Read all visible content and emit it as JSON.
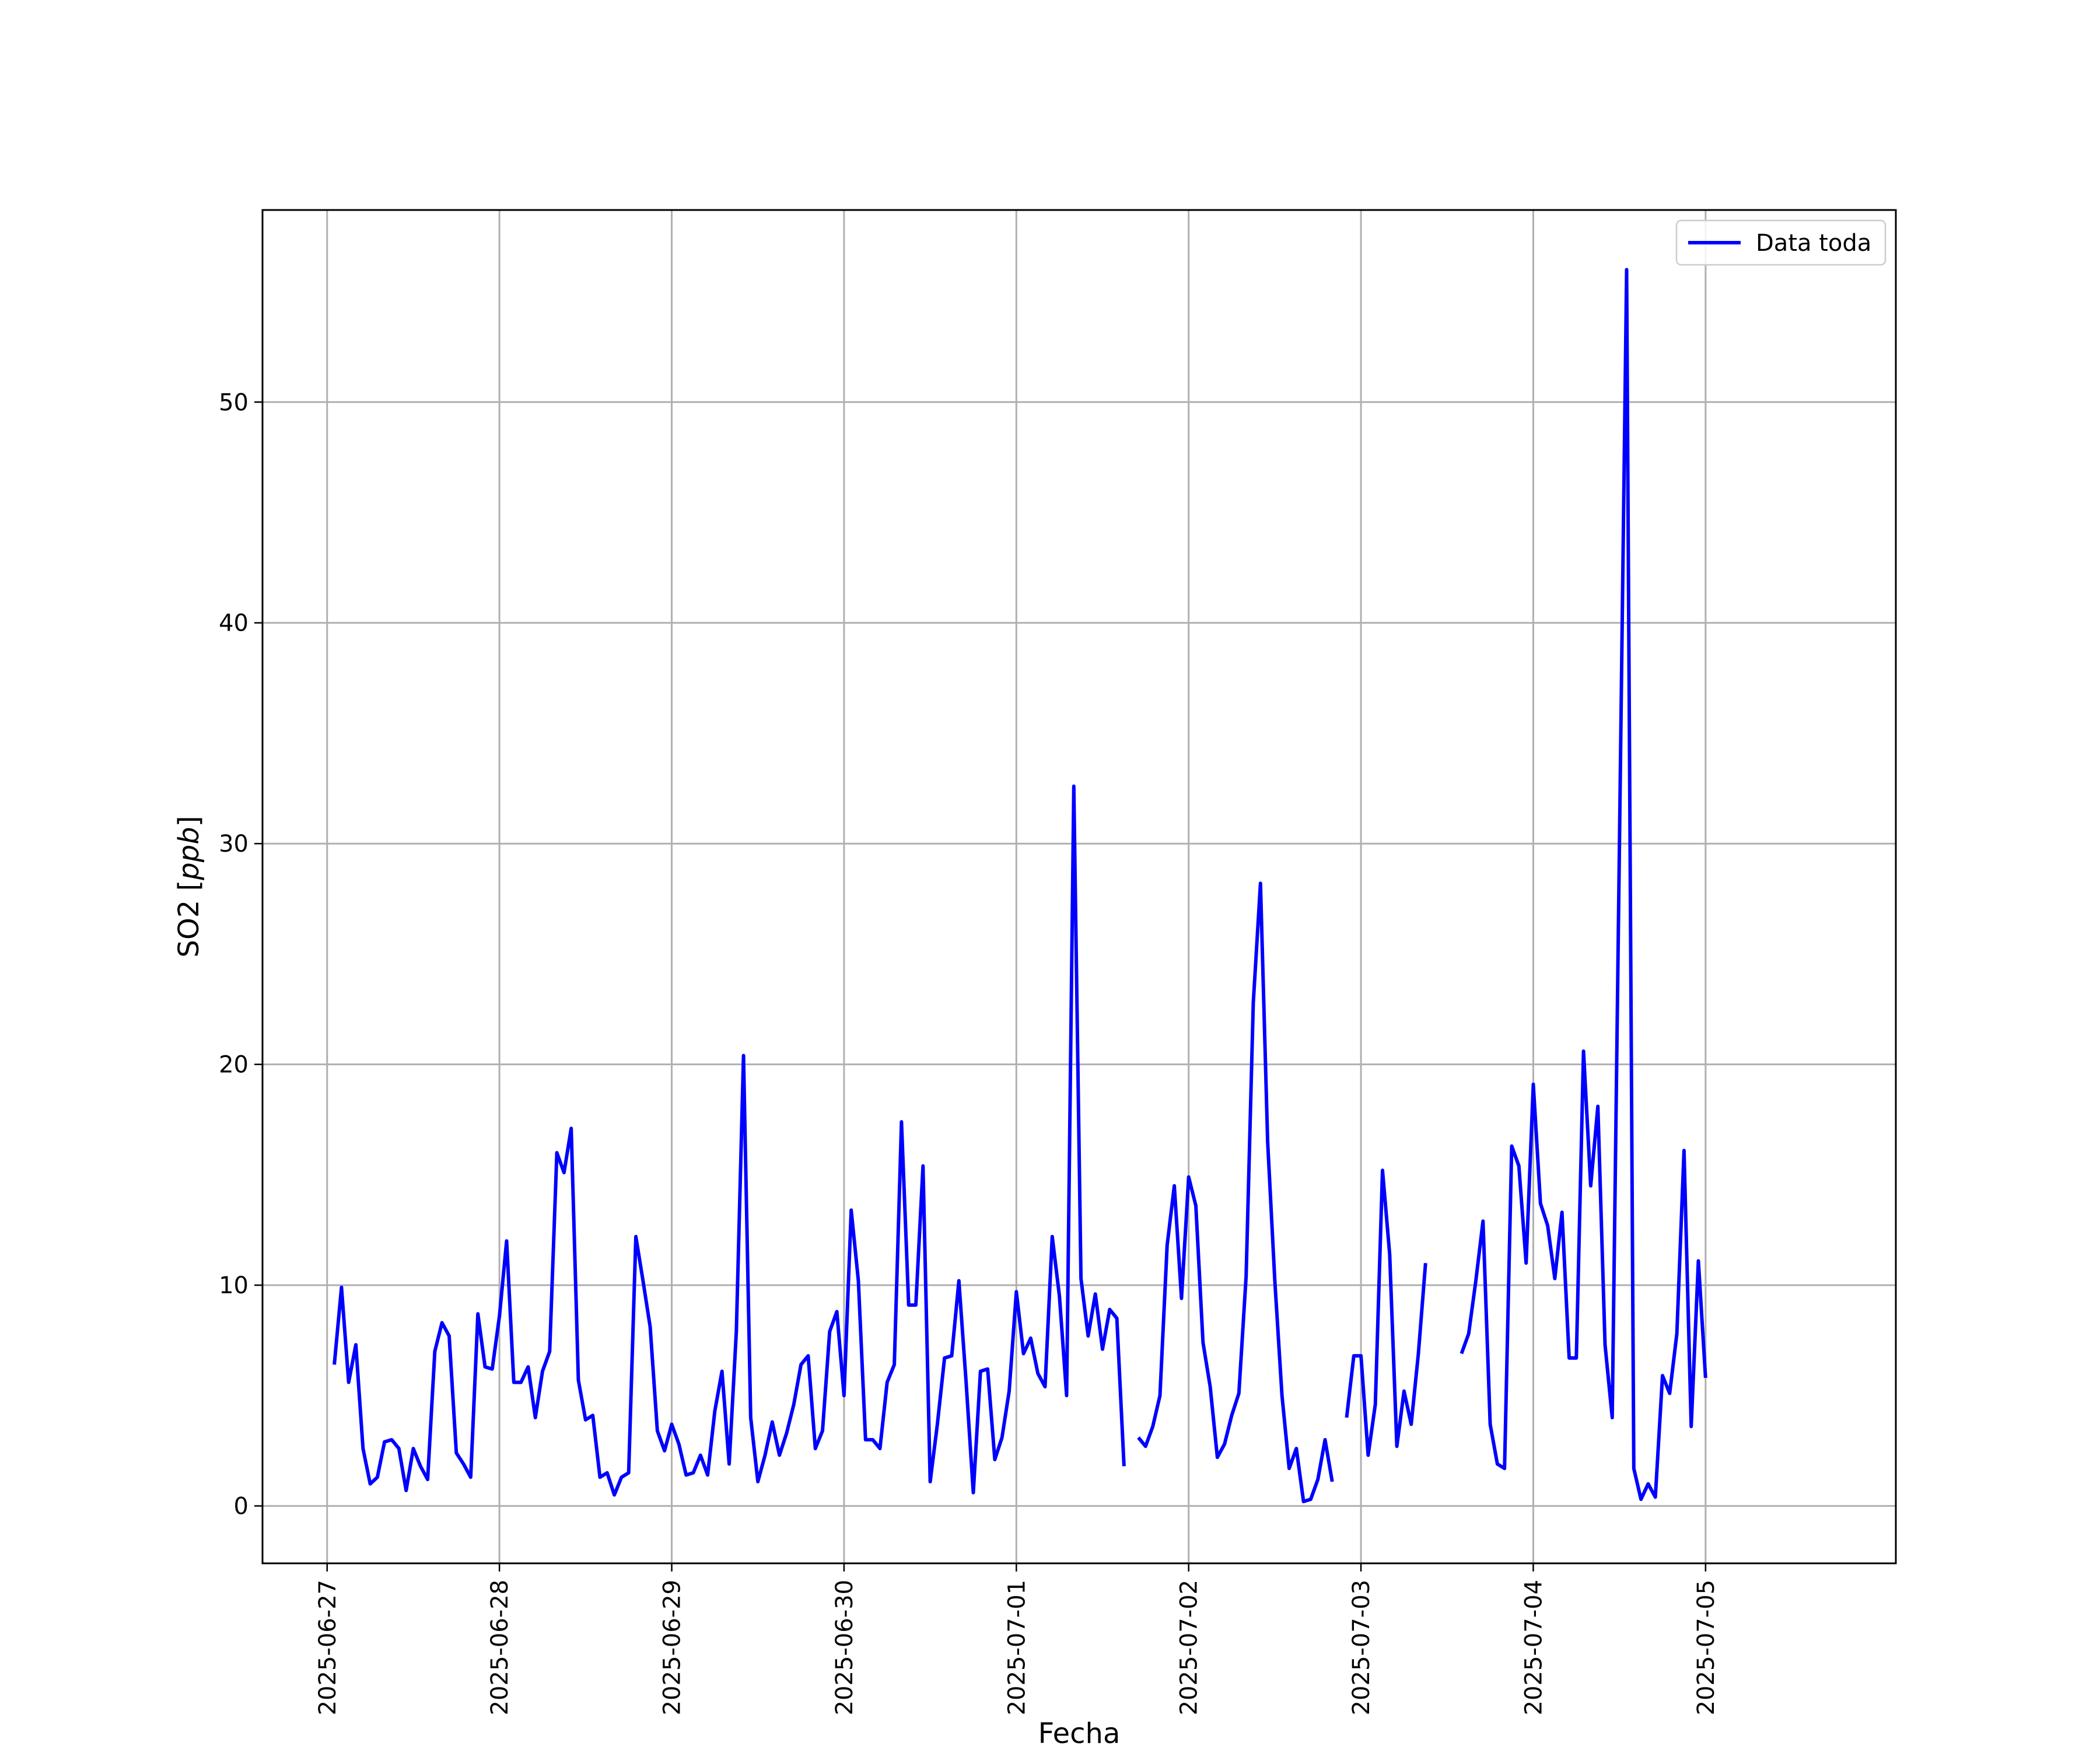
{
  "chart_data": {
    "type": "line",
    "title": "",
    "xlabel": "Fecha",
    "ylabel": "SO2 [ppb]",
    "ylabel_plain": "SO2 [",
    "ylabel_unit": "ppb",
    "ylabel_close": "]",
    "x_ticks": [
      "2025-06-27",
      "2025-06-28",
      "2025-06-29",
      "2025-06-30",
      "2025-07-01",
      "2025-07-02",
      "2025-07-03",
      "2025-07-04",
      "2025-07-05"
    ],
    "y_ticks": [
      0,
      10,
      20,
      30,
      40,
      50
    ],
    "xlim": [
      "2025-06-26 15:00",
      "2025-07-06 02:30"
    ],
    "ylim": [
      -2.6,
      58.7
    ],
    "grid": true,
    "legend_position": "top-right",
    "series": [
      {
        "name": "Data toda",
        "color": "#0000ff",
        "x": [
          "2025-06-27 01:00",
          "2025-06-27 02:00",
          "2025-06-27 03:00",
          "2025-06-27 04:00",
          "2025-06-27 05:00",
          "2025-06-27 06:00",
          "2025-06-27 07:00",
          "2025-06-27 08:00",
          "2025-06-27 09:00",
          "2025-06-27 10:00",
          "2025-06-27 11:00",
          "2025-06-27 12:00",
          "2025-06-27 13:00",
          "2025-06-27 14:00",
          "2025-06-27 15:00",
          "2025-06-27 16:00",
          "2025-06-27 17:00",
          "2025-06-27 18:00",
          "2025-06-27 19:00",
          "2025-06-27 20:00",
          "2025-06-27 21:00",
          "2025-06-27 22:00",
          "2025-06-27 23:00",
          "2025-06-28 00:00",
          "2025-06-28 01:00",
          "2025-06-28 02:00",
          "2025-06-28 03:00",
          "2025-06-28 04:00",
          "2025-06-28 05:00",
          "2025-06-28 06:00",
          "2025-06-28 07:00",
          "2025-06-28 08:00",
          "2025-06-28 09:00",
          "2025-06-28 10:00",
          "2025-06-28 11:00",
          "2025-06-28 12:00",
          "2025-06-28 13:00",
          "2025-06-28 14:00",
          "2025-06-28 15:00",
          "2025-06-28 16:00",
          "2025-06-28 17:00",
          "2025-06-28 18:00",
          "2025-06-28 19:00",
          "2025-06-28 20:00",
          "2025-06-28 21:00",
          "2025-06-28 22:00",
          "2025-06-28 23:00",
          "2025-06-29 00:00",
          "2025-06-29 01:00",
          "2025-06-29 02:00",
          "2025-06-29 03:00",
          "2025-06-29 04:00",
          "2025-06-29 05:00",
          "2025-06-29 06:00",
          "2025-06-29 07:00",
          "2025-06-29 08:00",
          "2025-06-29 09:00",
          "2025-06-29 10:00",
          "2025-06-29 11:00",
          "2025-06-29 12:00",
          "2025-06-29 13:00",
          "2025-06-29 14:00",
          "2025-06-29 15:00",
          "2025-06-29 16:00",
          "2025-06-29 17:00",
          "2025-06-29 18:00",
          "2025-06-29 19:00",
          "2025-06-29 20:00",
          "2025-06-29 21:00",
          "2025-06-29 22:00",
          "2025-06-29 23:00",
          "2025-06-30 00:00",
          "2025-06-30 01:00",
          "2025-06-30 02:00",
          "2025-06-30 03:00",
          "2025-06-30 04:00",
          "2025-06-30 05:00",
          "2025-06-30 06:00",
          "2025-06-30 07:00",
          "2025-06-30 08:00",
          "2025-06-30 09:00",
          "2025-06-30 10:00",
          "2025-06-30 11:00",
          "2025-06-30 12:00",
          "2025-06-30 13:00",
          "2025-06-30 14:00",
          "2025-06-30 15:00",
          "2025-06-30 16:00",
          "2025-06-30 17:00",
          "2025-06-30 18:00",
          "2025-06-30 19:00",
          "2025-06-30 20:00",
          "2025-06-30 21:00",
          "2025-06-30 22:00",
          "2025-06-30 23:00",
          "2025-07-01 00:00",
          "2025-07-01 01:00",
          "2025-07-01 02:00",
          "2025-07-01 03:00",
          "2025-07-01 04:00",
          "2025-07-01 05:00",
          "2025-07-01 06:00",
          "2025-07-01 07:00",
          "2025-07-01 08:00",
          "2025-07-01 09:00",
          "2025-07-01 10:00",
          "2025-07-01 11:00",
          "2025-07-01 12:00",
          "2025-07-01 13:00",
          "2025-07-01 14:00",
          "2025-07-01 15:00",
          "2025-07-01 17:00",
          "2025-07-01 18:00",
          "2025-07-01 19:00",
          "2025-07-01 20:00",
          "2025-07-01 21:00",
          "2025-07-01 22:00",
          "2025-07-01 23:00",
          "2025-07-02 00:00",
          "2025-07-02 01:00",
          "2025-07-02 02:00",
          "2025-07-02 03:00",
          "2025-07-02 04:00",
          "2025-07-02 05:00",
          "2025-07-02 06:00",
          "2025-07-02 07:00",
          "2025-07-02 08:00",
          "2025-07-02 09:00",
          "2025-07-02 10:00",
          "2025-07-02 11:00",
          "2025-07-02 12:00",
          "2025-07-02 13:00",
          "2025-07-02 14:00",
          "2025-07-02 15:00",
          "2025-07-02 16:00",
          "2025-07-02 17:00",
          "2025-07-02 18:00",
          "2025-07-02 19:00",
          "2025-07-02 20:00",
          "2025-07-02 22:00",
          "2025-07-02 23:00",
          "2025-07-03 00:00",
          "2025-07-03 01:00",
          "2025-07-03 02:00",
          "2025-07-03 03:00",
          "2025-07-03 04:00",
          "2025-07-03 05:00",
          "2025-07-03 06:00",
          "2025-07-03 07:00",
          "2025-07-03 08:00",
          "2025-07-03 09:00",
          "2025-07-03 14:00",
          "2025-07-03 15:00",
          "2025-07-03 16:00",
          "2025-07-03 17:00",
          "2025-07-03 18:00",
          "2025-07-03 19:00",
          "2025-07-03 20:00",
          "2025-07-03 21:00",
          "2025-07-03 22:00",
          "2025-07-03 23:00",
          "2025-07-04 00:00",
          "2025-07-04 01:00",
          "2025-07-04 02:00",
          "2025-07-04 03:00",
          "2025-07-04 04:00",
          "2025-07-04 05:00",
          "2025-07-04 06:00",
          "2025-07-04 07:00",
          "2025-07-04 08:00",
          "2025-07-04 09:00",
          "2025-07-04 10:00",
          "2025-07-04 11:00",
          "2025-07-04 12:00",
          "2025-07-04 13:00",
          "2025-07-04 14:00",
          "2025-07-04 15:00",
          "2025-07-04 16:00",
          "2025-07-04 17:00",
          "2025-07-04 18:00",
          "2025-07-04 19:00",
          "2025-07-04 20:00",
          "2025-07-04 21:00",
          "2025-07-04 22:00",
          "2025-07-04 23:00",
          "2025-07-05 00:00"
        ],
        "y": [
          6.4,
          9.9,
          5.6,
          7.3,
          2.6,
          1.0,
          1.3,
          2.9,
          3.0,
          2.6,
          0.7,
          2.6,
          1.8,
          1.2,
          7.0,
          8.3,
          7.7,
          2.4,
          1.9,
          1.3,
          8.7,
          6.3,
          6.2,
          8.6,
          12.0,
          5.6,
          5.6,
          6.3,
          4.0,
          6.1,
          7.0,
          16.0,
          15.1,
          17.1,
          5.7,
          3.9,
          4.1,
          1.3,
          1.5,
          0.5,
          1.3,
          1.5,
          12.2,
          10.2,
          8.1,
          3.4,
          2.5,
          3.7,
          2.8,
          1.4,
          1.5,
          2.3,
          1.4,
          4.3,
          6.1,
          1.9,
          7.9,
          20.4,
          4.0,
          1.1,
          2.3,
          3.8,
          2.3,
          3.3,
          4.6,
          6.4,
          6.8,
          2.6,
          3.4,
          7.9,
          8.8,
          5.0,
          13.4,
          10.2,
          3.0,
          3.0,
          2.6,
          5.6,
          6.4,
          17.4,
          9.1,
          9.1,
          15.4,
          1.1,
          3.7,
          6.7,
          6.8,
          10.2,
          5.6,
          0.6,
          6.1,
          6.2,
          2.1,
          3.1,
          5.2,
          9.7,
          6.9,
          7.6,
          6.0,
          5.4,
          12.2,
          9.5,
          5.0,
          32.6,
          10.3,
          7.7,
          9.6,
          7.1,
          8.9,
          8.5,
          1.8,
          3.1,
          2.7,
          3.6,
          5.0,
          11.8,
          14.5,
          9.4,
          14.9,
          13.6,
          7.4,
          5.4,
          2.2,
          2.8,
          4.1,
          5.1,
          10.4,
          22.8,
          28.2,
          16.5,
          10.2,
          5.0,
          1.7,
          2.6,
          0.2,
          0.3,
          1.2,
          3.0,
          1.1,
          4.0,
          6.8,
          6.8,
          2.3,
          4.6,
          15.2,
          11.4,
          2.7,
          5.2,
          3.7,
          6.9,
          11.0,
          6.9,
          7.8,
          10.2,
          12.9,
          3.7,
          1.9,
          1.7,
          16.3,
          15.4,
          11.0,
          19.1,
          13.7,
          12.7,
          10.3,
          13.3,
          6.7,
          6.7,
          20.6,
          14.5,
          18.1,
          7.3,
          4.0,
          30.0,
          56.0,
          1.7,
          0.3,
          1.0,
          0.4,
          5.9,
          5.1,
          7.8,
          16.1,
          3.6,
          11.1,
          5.8
        ]
      }
    ]
  }
}
